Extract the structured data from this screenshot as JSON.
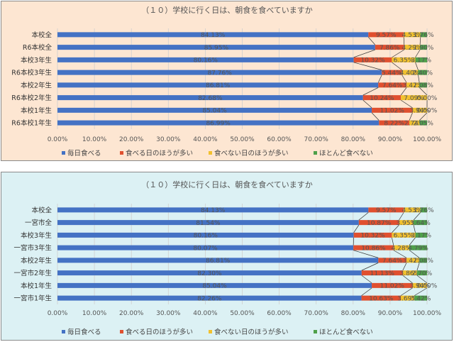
{
  "chart_data": [
    {
      "type": "bar",
      "stacked": true,
      "orientation": "horizontal",
      "title": "（１０）学校に行く日は、朝食を食べていますか",
      "categories": [
        "本校全",
        "R6本校全",
        "本校3年生",
        "R6本校3年生",
        "本校2年生",
        "R6本校2年生",
        "本校1年生",
        "R6本校1年生"
      ],
      "series": [
        {
          "name": "毎日食べる",
          "color": "#4472c4",
          "values": [
            84.13,
            85.95,
            80.16,
            87.76,
            86.81,
            82.68,
            85.04,
            86.99
          ],
          "labels": [
            "84.13%",
            "85.95%",
            "80.16%",
            "87.76%",
            "86.81%",
            "82.68%",
            "85.04%",
            "86.99%"
          ]
        },
        {
          "name": "食べる日のほうが多い",
          "color": "#e0502f",
          "values": [
            9.57,
            7.86,
            10.32,
            5.44,
            7.64,
            10.24,
            11.02,
            8.22
          ],
          "labels": [
            "9.57%",
            "7.86%",
            "10.32%",
            "5.44%",
            "7.64%",
            "10.24%",
            "11.02%",
            "8.22%"
          ]
        },
        {
          "name": "食べない日のほうが多い",
          "color": "#f2c12e",
          "values": [
            4.53,
            4.29,
            6.35,
            4.4,
            3.47,
            7.09,
            3.94,
            2.74
          ],
          "labels": [
            "4.53%",
            "4.29%",
            "6.35%",
            "4.40%",
            "3.47%",
            "7.09%",
            "3.94%",
            "2.74%"
          ]
        },
        {
          "name": "ほとんど食べない",
          "color": "#4ea04a",
          "values": [
            1.76,
            1.9,
            3.17,
            2.4,
            2.08,
            0.0,
            0.0,
            2.05
          ],
          "labels": [
            "1.76%",
            "1.90%",
            "3.17%",
            "2.40%",
            "2.08%",
            "0.00%",
            "0.00%",
            "2.05%"
          ]
        }
      ],
      "xlim": [
        0,
        100
      ],
      "xticks": [
        "0.00%",
        "10.00%",
        "20.00%",
        "30.00%",
        "40.00%",
        "50.00%",
        "60.00%",
        "70.00%",
        "80.00%",
        "90.00%",
        "100.00%"
      ],
      "legend_position": "bottom",
      "background": "#fde6d2"
    },
    {
      "type": "bar",
      "stacked": true,
      "orientation": "horizontal",
      "title": "（１０）学校に行く日は、朝食を食べていますか",
      "categories": [
        "本校全",
        "一宮市全",
        "本校3年生",
        "一宮市3年生",
        "本校2年生",
        "一宮市2年生",
        "本校1年生",
        "一宮市1年生"
      ],
      "series": [
        {
          "name": "毎日食べる",
          "color": "#4472c4",
          "values": [
            84.13,
            81.54,
            80.16,
            80.07,
            86.81,
            82.3,
            85.04,
            82.26
          ],
          "labels": [
            "84.13%",
            "81.54%",
            "80.16%",
            "80.07%",
            "86.81%",
            "82.30%",
            "85.04%",
            "82.26%"
          ]
        },
        {
          "name": "食べる日のほうが多い",
          "color": "#e0502f",
          "values": [
            9.57,
            10.87,
            10.32,
            10.86,
            7.64,
            11.13,
            11.02,
            10.63
          ],
          "labels": [
            "9.57%",
            "10.87%",
            "10.32%",
            "10.86%",
            "7.64%",
            "11.13%",
            "11.02%",
            "10.63%"
          ]
        },
        {
          "name": "食べない日のほうが多い",
          "color": "#f2c12e",
          "values": [
            4.53,
            3.95,
            6.35,
            4.28,
            3.47,
            3.86,
            3.94,
            3.69
          ],
          "labels": [
            "4.53%",
            "3.95%",
            "6.35%",
            "4.28%",
            "3.47%",
            "3.86%",
            "3.94%",
            "3.69%"
          ]
        },
        {
          "name": "ほとんど食べない",
          "color": "#4ea04a",
          "values": [
            1.76,
            3.64,
            3.17,
            4.79,
            2.08,
            2.7,
            0.0,
            3.42
          ],
          "labels": [
            "1.76%",
            "3.64%",
            "3.17%",
            "4.79%",
            "2.08%",
            "2.70%",
            "0.00%",
            "3.42%"
          ]
        }
      ],
      "xlim": [
        0,
        100
      ],
      "xticks": [
        "0.00%",
        "10.00%",
        "20.00%",
        "30.00%",
        "40.00%",
        "50.00%",
        "60.00%",
        "70.00%",
        "80.00%",
        "90.00%",
        "100.00%"
      ],
      "legend_position": "bottom",
      "background": "#dcf1f4"
    }
  ]
}
